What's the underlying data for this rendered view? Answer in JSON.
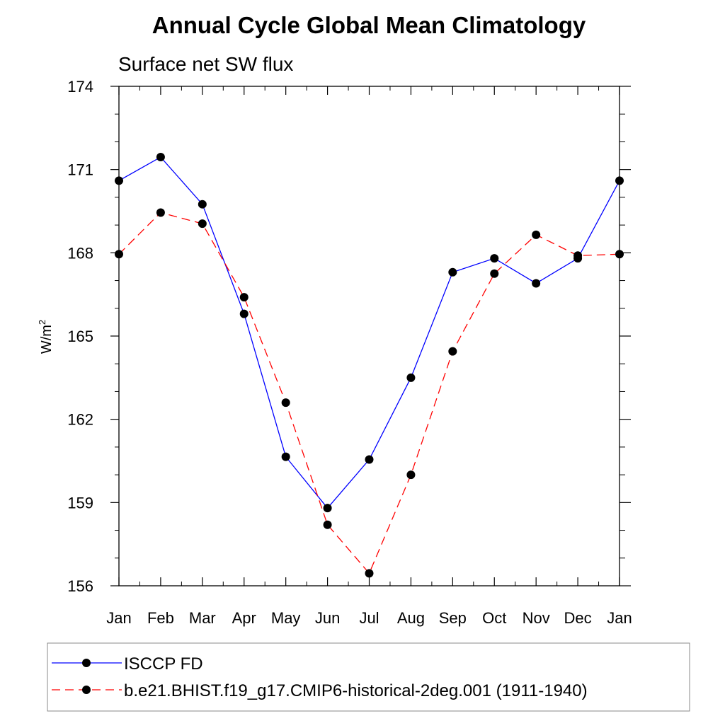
{
  "chart_data": {
    "type": "line",
    "title": "Annual Cycle Global Mean Climatology",
    "subtitle": "Surface net SW flux",
    "ylabel": "W/m",
    "ylabel_superscript": "2",
    "xlabel": "",
    "categories": [
      "Jan",
      "Feb",
      "Mar",
      "Apr",
      "May",
      "Jun",
      "Jul",
      "Aug",
      "Sep",
      "Oct",
      "Nov",
      "Dec",
      "Jan"
    ],
    "ylim": [
      156,
      174
    ],
    "yticks": [
      "156",
      "159",
      "162",
      "165",
      "168",
      "171",
      "174"
    ],
    "grid": false,
    "legend_placement": "bottom",
    "series": [
      {
        "name": "ISCCP FD",
        "color": "#0000ff",
        "line_style": "solid",
        "marker": "filled-circle",
        "values": [
          170.6,
          171.45,
          169.75,
          165.8,
          160.65,
          158.8,
          160.55,
          163.5,
          167.3,
          167.8,
          166.9,
          167.8,
          170.6
        ]
      },
      {
        "name": "b.e21.BHIST.f19_g17.CMIP6-historical-2deg.001 (1911-1940)",
        "color": "#ff0000",
        "line_style": "dashed",
        "marker": "filled-circle",
        "values": [
          167.95,
          169.45,
          169.05,
          166.4,
          162.6,
          158.2,
          156.45,
          160.0,
          164.45,
          167.25,
          168.65,
          167.9,
          167.95
        ]
      }
    ]
  }
}
